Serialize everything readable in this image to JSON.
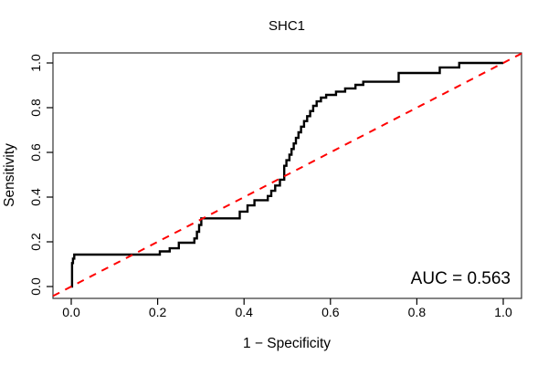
{
  "window": {
    "background": "#ffffff"
  },
  "colors": {
    "curve": "#000000",
    "reference_line": "#ff0000",
    "axis_box": "#333333",
    "tick": "#000000",
    "text": "#000000"
  },
  "chart_data": {
    "type": "line",
    "chart_kind": "roc_curve_step",
    "title": "SHC1",
    "xlabel": "1 − Specificity",
    "ylabel": "Sensitivity",
    "xlim": [
      0,
      1
    ],
    "ylim": [
      0,
      1
    ],
    "grid": false,
    "legend": "none",
    "x_ticks": [
      0,
      0.2,
      0.4,
      0.6,
      0.8,
      1
    ],
    "x_tick_labels": [
      "0.0",
      "0.2",
      "0.4",
      "0.6",
      "0.8",
      "1.0"
    ],
    "y_ticks": [
      0,
      0.2,
      0.4,
      0.6,
      0.8,
      1
    ],
    "y_tick_labels": [
      "0.0",
      "0.2",
      "0.4",
      "0.6",
      "0.8",
      "1.0"
    ],
    "series": [
      {
        "name": "roc-curve",
        "type": "step",
        "color": "#000000",
        "dash": "solid",
        "line_width": 2.4,
        "points": [
          [
            0.0,
            0.0
          ],
          [
            0.002,
            0.0
          ],
          [
            0.002,
            0.105
          ],
          [
            0.004,
            0.105
          ],
          [
            0.004,
            0.125
          ],
          [
            0.007,
            0.125
          ],
          [
            0.007,
            0.143
          ],
          [
            0.205,
            0.143
          ],
          [
            0.205,
            0.157
          ],
          [
            0.228,
            0.157
          ],
          [
            0.228,
            0.171
          ],
          [
            0.249,
            0.171
          ],
          [
            0.249,
            0.196
          ],
          [
            0.285,
            0.196
          ],
          [
            0.285,
            0.215
          ],
          [
            0.291,
            0.215
          ],
          [
            0.291,
            0.245
          ],
          [
            0.296,
            0.245
          ],
          [
            0.296,
            0.275
          ],
          [
            0.301,
            0.275
          ],
          [
            0.301,
            0.305
          ],
          [
            0.39,
            0.305
          ],
          [
            0.39,
            0.335
          ],
          [
            0.408,
            0.335
          ],
          [
            0.408,
            0.363
          ],
          [
            0.424,
            0.363
          ],
          [
            0.424,
            0.386
          ],
          [
            0.455,
            0.386
          ],
          [
            0.455,
            0.405
          ],
          [
            0.463,
            0.405
          ],
          [
            0.463,
            0.428
          ],
          [
            0.472,
            0.428
          ],
          [
            0.472,
            0.452
          ],
          [
            0.483,
            0.452
          ],
          [
            0.483,
            0.478
          ],
          [
            0.493,
            0.478
          ],
          [
            0.493,
            0.54
          ],
          [
            0.498,
            0.54
          ],
          [
            0.498,
            0.565
          ],
          [
            0.505,
            0.565
          ],
          [
            0.505,
            0.59
          ],
          [
            0.51,
            0.59
          ],
          [
            0.51,
            0.615
          ],
          [
            0.515,
            0.615
          ],
          [
            0.515,
            0.64
          ],
          [
            0.52,
            0.64
          ],
          [
            0.52,
            0.665
          ],
          [
            0.526,
            0.665
          ],
          [
            0.526,
            0.69
          ],
          [
            0.532,
            0.69
          ],
          [
            0.532,
            0.715
          ],
          [
            0.539,
            0.715
          ],
          [
            0.539,
            0.74
          ],
          [
            0.546,
            0.74
          ],
          [
            0.546,
            0.762
          ],
          [
            0.553,
            0.762
          ],
          [
            0.553,
            0.785
          ],
          [
            0.56,
            0.785
          ],
          [
            0.56,
            0.808
          ],
          [
            0.568,
            0.808
          ],
          [
            0.568,
            0.828
          ],
          [
            0.578,
            0.828
          ],
          [
            0.578,
            0.845
          ],
          [
            0.59,
            0.845
          ],
          [
            0.59,
            0.857
          ],
          [
            0.613,
            0.857
          ],
          [
            0.613,
            0.872
          ],
          [
            0.634,
            0.872
          ],
          [
            0.634,
            0.886
          ],
          [
            0.658,
            0.886
          ],
          [
            0.658,
            0.902
          ],
          [
            0.676,
            0.902
          ],
          [
            0.676,
            0.916
          ],
          [
            0.758,
            0.916
          ],
          [
            0.758,
            0.955
          ],
          [
            0.853,
            0.955
          ],
          [
            0.853,
            0.98
          ],
          [
            0.898,
            0.98
          ],
          [
            0.898,
            1.0
          ],
          [
            1.0,
            1.0
          ]
        ]
      },
      {
        "name": "chance-diagonal",
        "type": "abline",
        "color": "#ff0000",
        "dash": "dashed",
        "line_width": 2,
        "points": [
          [
            0,
            0
          ],
          [
            1,
            1
          ]
        ]
      }
    ],
    "annotations": [
      {
        "text": "AUC = 0.563",
        "auc_value": 0.563,
        "position": "bottom-right"
      }
    ]
  }
}
